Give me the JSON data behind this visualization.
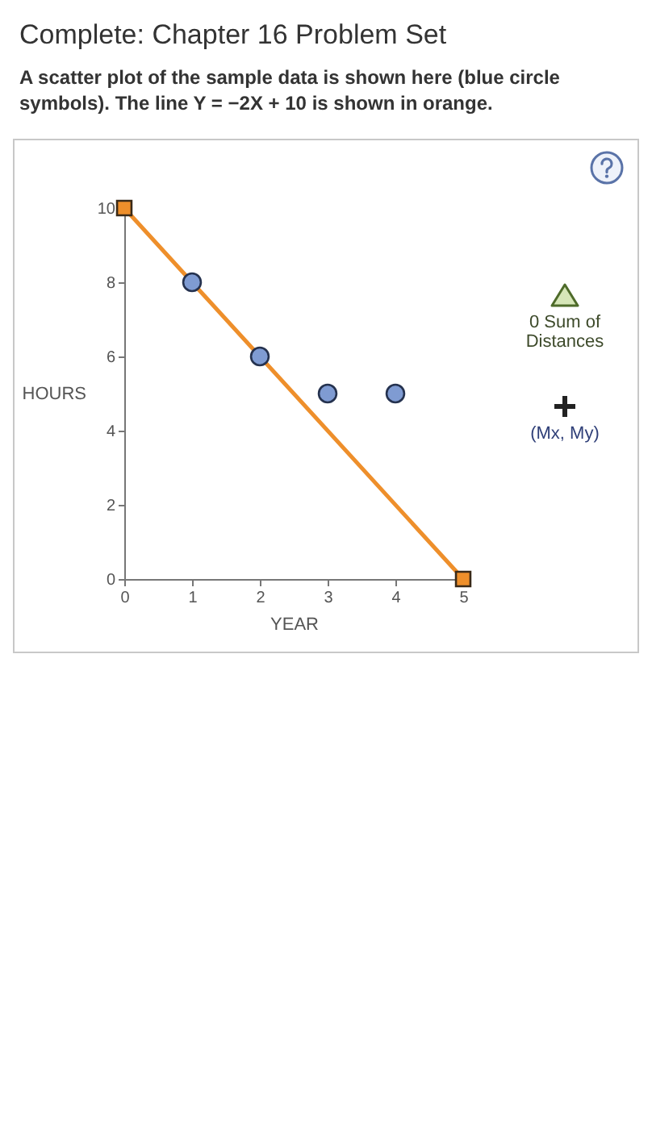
{
  "chart_data": {
    "type": "scatter",
    "title": "Complete: Chapter 16 Problem Set",
    "subtitle": "A scatter plot of the sample data is shown here (blue circle symbols). The line Y = −2X + 10 is shown in orange.",
    "xlabel": "YEAR",
    "ylabel": "HOURS",
    "xlim": [
      0,
      5
    ],
    "xticks": [
      0,
      1,
      2,
      3,
      4,
      5
    ],
    "ylim": [
      0,
      10
    ],
    "yticks": [
      0,
      2,
      4,
      6,
      8,
      10
    ],
    "grid": false,
    "annotations": [
      "0 Sum of Distances",
      "(Mx, My)"
    ],
    "series": [
      {
        "type": "line",
        "color": "#ee8f2b",
        "marker": "square",
        "line_style": "solid",
        "x": [
          0,
          5
        ],
        "values": [
          10,
          0
        ]
      },
      {
        "color": "#7f9bd2",
        "marker": "circle",
        "x": [
          1,
          2,
          3,
          4
        ],
        "values": [
          8,
          6,
          5,
          5
        ]
      }
    ]
  }
}
